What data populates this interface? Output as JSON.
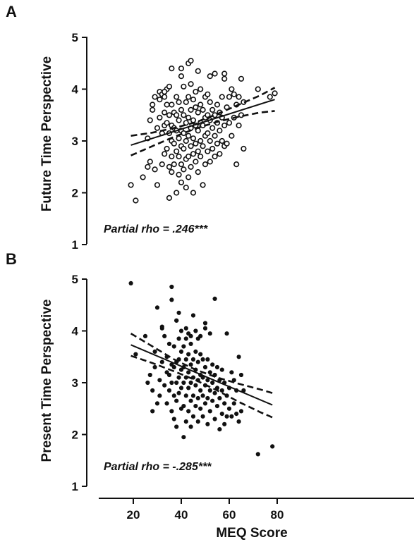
{
  "chart_data": [
    {
      "type": "scatter",
      "panel": "A",
      "ylabel": "Future Time Perspective",
      "xlabel": "",
      "ylim": [
        1,
        5
      ],
      "yticks": [
        1,
        2,
        3,
        4,
        5
      ],
      "marker": "open-circle",
      "annotation": "Partial rho = .246***",
      "fit_line": {
        "x": [
          19,
          79
        ],
        "y": [
          2.92,
          3.8
        ]
      },
      "ci_upper": {
        "x": [
          19,
          28,
          37,
          46,
          55,
          64,
          73,
          79
        ],
        "y": [
          3.1,
          3.16,
          3.25,
          3.36,
          3.52,
          3.7,
          3.88,
          4.03
        ]
      },
      "ci_lower": {
        "x": [
          19,
          28,
          37,
          46,
          55,
          64,
          73,
          79
        ],
        "y": [
          2.72,
          2.9,
          3.08,
          3.24,
          3.37,
          3.47,
          3.55,
          3.58
        ]
      },
      "x": [
        19,
        21,
        24,
        26,
        26,
        27,
        27,
        28,
        28,
        29,
        30,
        30,
        31,
        31,
        31,
        32,
        32,
        32,
        33,
        33,
        33,
        33,
        34,
        34,
        34,
        34,
        35,
        35,
        35,
        35,
        35,
        36,
        36,
        36,
        36,
        36,
        37,
        37,
        37,
        37,
        38,
        38,
        38,
        38,
        38,
        39,
        39,
        39,
        39,
        39,
        40,
        40,
        40,
        40,
        40,
        40,
        41,
        41,
        41,
        41,
        41,
        42,
        42,
        42,
        42,
        42,
        43,
        43,
        43,
        43,
        43,
        44,
        44,
        44,
        44,
        44,
        45,
        45,
        45,
        45,
        45,
        46,
        46,
        46,
        46,
        46,
        47,
        47,
        47,
        47,
        48,
        48,
        48,
        48,
        48,
        49,
        49,
        49,
        49,
        50,
        50,
        50,
        50,
        51,
        51,
        51,
        51,
        52,
        52,
        52,
        52,
        53,
        53,
        53,
        54,
        54,
        54,
        54,
        55,
        55,
        55,
        56,
        56,
        56,
        57,
        57,
        57,
        58,
        58,
        58,
        59,
        59,
        60,
        60,
        61,
        61,
        62,
        62,
        63,
        63,
        64,
        64,
        65,
        65,
        66,
        66,
        72,
        77,
        79,
        40,
        43,
        47,
        52,
        36,
        58,
        44,
        29,
        33
      ],
      "y": [
        2.15,
        1.85,
        2.3,
        2.5,
        3.05,
        2.6,
        3.4,
        3.6,
        3.7,
        2.45,
        2.15,
        3.25,
        3.45,
        3.8,
        3.95,
        2.55,
        3.15,
        3.9,
        2.75,
        3.3,
        3.55,
        3.85,
        2.85,
        3.35,
        3.7,
        4.0,
        1.9,
        2.5,
        3.15,
        3.5,
        4.05,
        2.4,
        2.7,
        3.0,
        3.3,
        3.7,
        2.55,
        2.95,
        3.25,
        3.55,
        2.0,
        2.8,
        3.2,
        3.5,
        3.85,
        2.35,
        2.7,
        3.05,
        3.4,
        3.75,
        2.2,
        2.55,
        2.9,
        3.2,
        3.6,
        4.25,
        2.45,
        2.85,
        3.15,
        3.5,
        4.05,
        2.1,
        2.65,
        3.0,
        3.35,
        3.75,
        2.3,
        2.7,
        3.1,
        3.45,
        3.85,
        2.5,
        2.9,
        3.25,
        3.6,
        4.1,
        2.0,
        2.75,
        3.05,
        3.4,
        3.8,
        2.6,
        2.95,
        3.3,
        3.65,
        3.95,
        2.4,
        2.8,
        3.2,
        3.55,
        2.7,
        3.0,
        3.35,
        3.7,
        4.0,
        2.15,
        2.9,
        3.3,
        3.6,
        2.55,
        3.1,
        3.45,
        3.85,
        2.8,
        3.15,
        3.5,
        3.9,
        2.6,
        3.0,
        3.4,
        3.75,
        2.85,
        3.25,
        3.6,
        2.7,
        3.1,
        3.5,
        4.3,
        2.95,
        3.35,
        3.7,
        2.75,
        3.2,
        3.55,
        3.0,
        3.45,
        3.85,
        2.9,
        3.3,
        4.3,
        3.65,
        2.95,
        3.35,
        3.85,
        3.1,
        4.0,
        3.45,
        3.9,
        2.55,
        3.7,
        3.3,
        3.85,
        3.5,
        4.2,
        2.85,
        3.75,
        4.0,
        3.85,
        3.92,
        4.4,
        4.5,
        4.35,
        4.25,
        4.4,
        4.2,
        4.55,
        3.85,
        3.95
      ]
    },
    {
      "type": "scatter",
      "panel": "B",
      "ylabel": "Present Time Perspective",
      "xlabel": "MEQ Score",
      "xlim": [
        15,
        85
      ],
      "xticks": [
        20,
        40,
        60,
        80
      ],
      "ylim": [
        1,
        5
      ],
      "yticks": [
        1,
        2,
        3,
        4,
        5
      ],
      "marker": "filled-circle",
      "annotation": "Partial rho = -.285***",
      "fit_line": {
        "x": [
          19,
          78
        ],
        "y": [
          3.73,
          2.57
        ]
      },
      "ci_upper": {
        "x": [
          19,
          28,
          37,
          46,
          55,
          64,
          73,
          78
        ],
        "y": [
          3.95,
          3.7,
          3.45,
          3.25,
          3.1,
          2.98,
          2.87,
          2.8
        ]
      },
      "ci_lower": {
        "x": [
          19,
          28,
          37,
          46,
          55,
          64,
          73,
          78
        ],
        "y": [
          3.52,
          3.38,
          3.22,
          3.05,
          2.85,
          2.63,
          2.43,
          2.33
        ]
      },
      "x": [
        19,
        21,
        25,
        26,
        27,
        28,
        28,
        29,
        29,
        30,
        30,
        31,
        31,
        32,
        32,
        33,
        33,
        34,
        34,
        34,
        35,
        35,
        35,
        36,
        36,
        36,
        36,
        37,
        37,
        37,
        37,
        38,
        38,
        38,
        38,
        38,
        39,
        39,
        39,
        39,
        39,
        40,
        40,
        40,
        40,
        40,
        41,
        41,
        41,
        41,
        41,
        42,
        42,
        42,
        42,
        42,
        43,
        43,
        43,
        43,
        43,
        44,
        44,
        44,
        44,
        44,
        45,
        45,
        45,
        45,
        45,
        46,
        46,
        46,
        46,
        46,
        47,
        47,
        47,
        47,
        48,
        48,
        48,
        48,
        48,
        49,
        49,
        49,
        49,
        50,
        50,
        50,
        50,
        51,
        51,
        51,
        51,
        52,
        52,
        52,
        52,
        53,
        53,
        53,
        54,
        54,
        54,
        55,
        55,
        55,
        56,
        56,
        56,
        57,
        57,
        57,
        58,
        58,
        58,
        59,
        59,
        59,
        60,
        60,
        61,
        61,
        62,
        62,
        63,
        63,
        64,
        64,
        65,
        65,
        66,
        72,
        78,
        36,
        38,
        42,
        47,
        54,
        32,
        44,
        50
      ],
      "y": [
        4.92,
        3.55,
        3.9,
        3.0,
        3.15,
        2.45,
        2.85,
        3.3,
        3.6,
        2.6,
        4.45,
        2.75,
        3.05,
        3.4,
        4.05,
        2.95,
        3.9,
        2.6,
        3.2,
        3.5,
        2.85,
        3.15,
        3.75,
        2.45,
        3.0,
        3.35,
        4.85,
        2.3,
        2.75,
        3.3,
        3.7,
        2.15,
        2.65,
        3.0,
        3.4,
        4.2,
        2.8,
        3.1,
        3.45,
        3.85,
        4.35,
        2.5,
        2.9,
        3.25,
        3.6,
        4.0,
        1.95,
        2.55,
        3.0,
        3.3,
        3.7,
        2.25,
        2.75,
        3.1,
        3.45,
        3.85,
        2.45,
        2.9,
        3.2,
        3.55,
        3.95,
        2.15,
        2.65,
        3.0,
        3.35,
        3.75,
        2.35,
        2.75,
        3.1,
        3.45,
        4.3,
        2.55,
        2.95,
        3.25,
        3.6,
        4.0,
        2.25,
        2.7,
        3.05,
        3.4,
        2.5,
        2.85,
        3.15,
        3.55,
        3.9,
        2.35,
        2.75,
        3.1,
        3.45,
        2.6,
        2.95,
        3.3,
        4.15,
        2.2,
        2.7,
        3.05,
        3.45,
        2.45,
        2.85,
        3.2,
        3.95,
        2.65,
        3.0,
        3.35,
        2.3,
        2.8,
        3.15,
        2.55,
        2.9,
        3.3,
        2.1,
        2.7,
        3.05,
        2.4,
        2.85,
        3.25,
        2.2,
        2.6,
        3.0,
        2.35,
        2.75,
        3.95,
        2.5,
        2.9,
        2.35,
        3.2,
        2.6,
        3.05,
        2.4,
        2.85,
        2.25,
        3.5,
        2.45,
        3.15,
        2.85,
        1.62,
        1.77,
        4.6,
        4.2,
        4.05,
        3.85,
        4.62,
        4.08,
        3.9,
        4.05
      ]
    }
  ]
}
